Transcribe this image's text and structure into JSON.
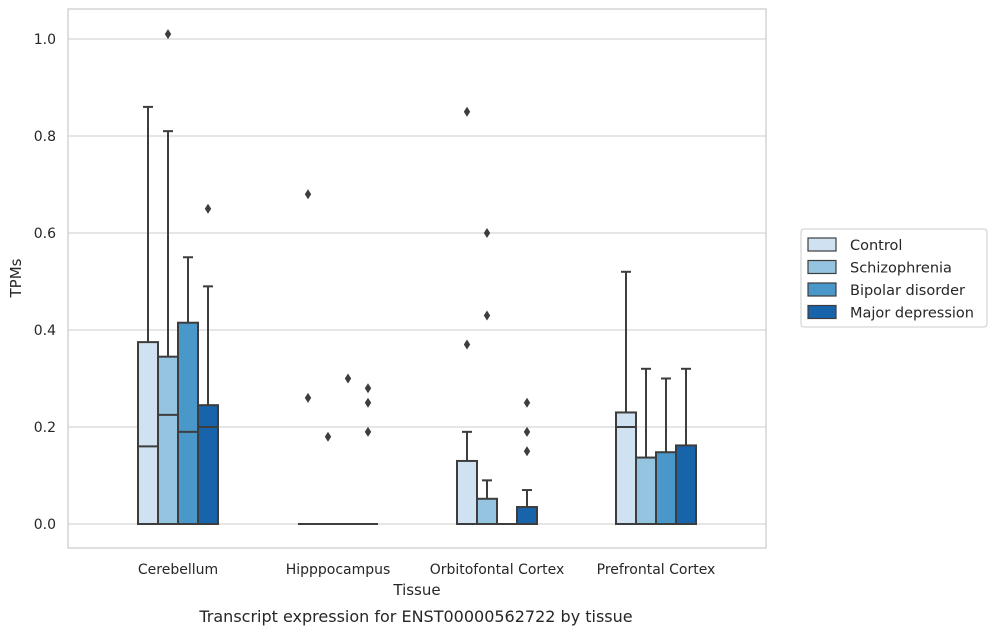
{
  "caption": "Transcript expression for ENST00000562722 by tissue",
  "chart_data": {
    "type": "box",
    "title": "",
    "xlabel": "Tissue",
    "ylabel": "TPMs",
    "ylim": [
      -0.05,
      1.06
    ],
    "yticks": [
      0.0,
      0.2,
      0.4,
      0.6,
      0.8,
      1.0
    ],
    "ytick_labels": [
      "0.0",
      "0.2",
      "0.4",
      "0.6",
      "0.8",
      "1.0"
    ],
    "grid": "horizontal",
    "legend_position": "right",
    "categories": [
      "Cerebellum",
      "Hipppocampus",
      "Orbitofontal Cortex",
      "Prefrontal Cortex"
    ],
    "series": [
      {
        "name": "Control",
        "color": "#d0e1f2",
        "boxes": [
          {
            "min": 0.0,
            "q1": 0.0,
            "median": 0.16,
            "q3": 0.375,
            "max": 0.86,
            "outliers": []
          },
          {
            "min": 0.0,
            "q1": 0.0,
            "median": 0.0,
            "q3": 0.0,
            "max": 0.0,
            "outliers": [
              0.68,
              0.26
            ]
          },
          {
            "min": 0.0,
            "q1": 0.0,
            "median": 0.0,
            "q3": 0.13,
            "max": 0.19,
            "outliers": [
              0.85,
              0.37
            ]
          },
          {
            "min": 0.0,
            "q1": 0.0,
            "median": 0.2,
            "q3": 0.23,
            "max": 0.52,
            "outliers": []
          }
        ]
      },
      {
        "name": "Schizophrenia",
        "color": "#94c4df",
        "boxes": [
          {
            "min": 0.0,
            "q1": 0.0,
            "median": 0.225,
            "q3": 0.345,
            "max": 0.81,
            "outliers": [
              1.01
            ]
          },
          {
            "min": 0.0,
            "q1": 0.0,
            "median": 0.0,
            "q3": 0.0,
            "max": 0.0,
            "outliers": [
              0.18
            ]
          },
          {
            "min": 0.0,
            "q1": 0.0,
            "median": 0.0,
            "q3": 0.052,
            "max": 0.09,
            "outliers": [
              0.6,
              0.43
            ]
          },
          {
            "min": 0.0,
            "q1": 0.0,
            "median": 0.0,
            "q3": 0.137,
            "max": 0.32,
            "outliers": []
          }
        ]
      },
      {
        "name": "Bipolar disorder",
        "color": "#4a98c9",
        "boxes": [
          {
            "min": 0.0,
            "q1": 0.0,
            "median": 0.19,
            "q3": 0.415,
            "max": 0.55,
            "outliers": []
          },
          {
            "min": 0.0,
            "q1": 0.0,
            "median": 0.0,
            "q3": 0.0,
            "max": 0.0,
            "outliers": [
              0.3
            ]
          },
          {
            "min": 0.0,
            "q1": 0.0,
            "median": 0.0,
            "q3": 0.0,
            "max": 0.0,
            "outliers": []
          },
          {
            "min": 0.0,
            "q1": 0.0,
            "median": 0.0,
            "q3": 0.148,
            "max": 0.3,
            "outliers": []
          }
        ]
      },
      {
        "name": "Major depression",
        "color": "#1764ab",
        "boxes": [
          {
            "min": 0.0,
            "q1": 0.0,
            "median": 0.2,
            "q3": 0.245,
            "max": 0.49,
            "outliers": [
              0.65
            ]
          },
          {
            "min": 0.0,
            "q1": 0.0,
            "median": 0.0,
            "q3": 0.0,
            "max": 0.0,
            "outliers": [
              0.28,
              0.25,
              0.19
            ]
          },
          {
            "min": 0.0,
            "q1": 0.0,
            "median": 0.0,
            "q3": 0.035,
            "max": 0.07,
            "outliers": [
              0.25,
              0.19,
              0.15
            ]
          },
          {
            "min": 0.0,
            "q1": 0.0,
            "median": 0.0,
            "q3": 0.162,
            "max": 0.32,
            "outliers": []
          }
        ]
      }
    ]
  }
}
